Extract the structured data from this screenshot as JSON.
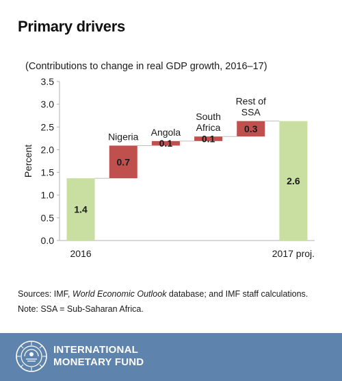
{
  "title": "Primary drivers",
  "chart_data": {
    "type": "bar",
    "subtype": "waterfall",
    "subtitle": "(Contributions to change in real GDP growth, 2016–17)",
    "ylabel": "Percent",
    "xlabel": "",
    "ylim": [
      0,
      3.5
    ],
    "yticks": [
      "0.0",
      "0.5",
      "1.0",
      "1.5",
      "2.0",
      "2.5",
      "3.0",
      "3.5"
    ],
    "grid": false,
    "legend": "none",
    "bars": [
      {
        "category": "2016",
        "start": 0,
        "end": 1.37,
        "label": "1.4",
        "kind": "total"
      },
      {
        "category": "Nigeria",
        "start": 1.37,
        "end": 2.09,
        "label": "0.7",
        "kind": "delta"
      },
      {
        "category": "Angola",
        "start": 2.09,
        "end": 2.19,
        "label": "0.1",
        "kind": "delta"
      },
      {
        "category": "South Africa",
        "start": 2.19,
        "end": 2.29,
        "label": "0.1",
        "kind": "delta"
      },
      {
        "category": "Rest of SSA",
        "start": 2.29,
        "end": 2.63,
        "label": "0.3",
        "kind": "delta"
      },
      {
        "category": "2017 proj.",
        "start": 0,
        "end": 2.63,
        "label": "2.6",
        "kind": "total"
      }
    ],
    "colors": {
      "total": "#c9dea1",
      "delta": "#c0504d"
    }
  },
  "sources": {
    "line1_prefix": "Sources: IMF, ",
    "line1_italic": "World Economic Outlook",
    "line1_suffix": " database; and IMF staff calculations.",
    "line2": "Note: SSA = Sub-Saharan Africa."
  },
  "footer": {
    "org_line1": "INTERNATIONAL",
    "org_line2": "MONETARY FUND",
    "seal_icon": "imf-seal-icon",
    "background": "#5e83ad"
  }
}
